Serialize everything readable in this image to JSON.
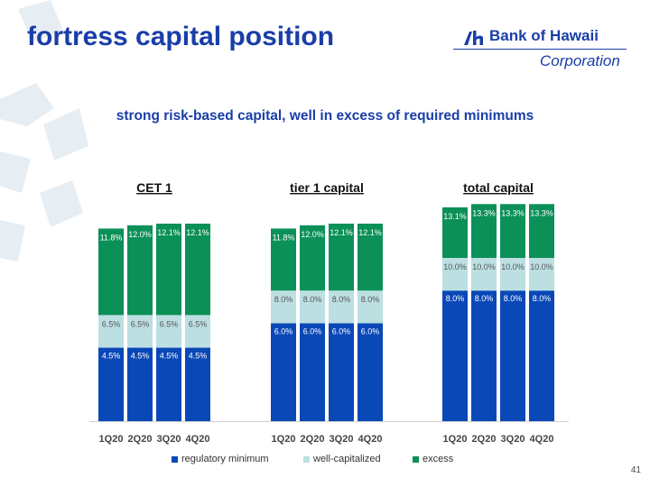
{
  "page": {
    "title": "fortress capital position",
    "subtitle": "strong risk-based capital, well in excess of required minimums",
    "page_number": "41"
  },
  "logo": {
    "name": "Bank of Hawaii",
    "corporation": "Corporation",
    "mark_icon": "bank-of-hawaii-logo-mark"
  },
  "colors": {
    "regulatory_minimum": "#0a48b8",
    "well_capitalized": "#bcdfe2",
    "excess": "#0b9058",
    "title": "#1a3ea8",
    "background_shapes": "#e6eef3"
  },
  "chart_data": {
    "type": "bar",
    "stacked": true,
    "legend_position": "bottom",
    "grid": false,
    "ylim": [
      0,
      15
    ],
    "legend": [
      {
        "name": "regulatory minimum",
        "color": "#0a48b8"
      },
      {
        "name": "well-capitalized",
        "color": "#bcdfe2"
      },
      {
        "name": "excess",
        "color": "#0b9058"
      }
    ],
    "groups": [
      {
        "title": "CET 1",
        "categories": [
          "1Q20",
          "2Q20",
          "3Q20",
          "4Q20"
        ],
        "regulatory_minimum": [
          4.5,
          4.5,
          4.5,
          4.5
        ],
        "well_capitalized": [
          6.5,
          6.5,
          6.5,
          6.5
        ],
        "total": [
          11.8,
          12.0,
          12.1,
          12.1
        ],
        "labels": {
          "regulatory_minimum": [
            "4.5%",
            "4.5%",
            "4.5%",
            "4.5%"
          ],
          "well_capitalized": [
            "6.5%",
            "6.5%",
            "6.5%",
            "6.5%"
          ],
          "total": [
            "11.8%",
            "12.0%",
            "12.1%",
            "12.1%"
          ]
        }
      },
      {
        "title": "tier 1 capital",
        "categories": [
          "1Q20",
          "2Q20",
          "3Q20",
          "4Q20"
        ],
        "regulatory_minimum": [
          6.0,
          6.0,
          6.0,
          6.0
        ],
        "well_capitalized": [
          8.0,
          8.0,
          8.0,
          8.0
        ],
        "total": [
          11.8,
          12.0,
          12.1,
          12.1
        ],
        "labels": {
          "regulatory_minimum": [
            "6.0%",
            "6.0%",
            "6.0%",
            "6.0%"
          ],
          "well_capitalized": [
            "8.0%",
            "8.0%",
            "8.0%",
            "8.0%"
          ],
          "total": [
            "11.8%",
            "12.0%",
            "12.1%",
            "12.1%"
          ]
        }
      },
      {
        "title": "total capital",
        "categories": [
          "1Q20",
          "2Q20",
          "3Q20",
          "4Q20"
        ],
        "regulatory_minimum": [
          8.0,
          8.0,
          8.0,
          8.0
        ],
        "well_capitalized": [
          10.0,
          10.0,
          10.0,
          10.0
        ],
        "total": [
          13.1,
          13.3,
          13.3,
          13.3
        ],
        "labels": {
          "regulatory_minimum": [
            "8.0%",
            "8.0%",
            "8.0%",
            "8.0%"
          ],
          "well_capitalized": [
            "10.0%",
            "10.0%",
            "10.0%",
            "10.0%"
          ],
          "total": [
            "13.1%",
            "13.3%",
            "13.3%",
            "13.3%"
          ]
        }
      }
    ]
  }
}
